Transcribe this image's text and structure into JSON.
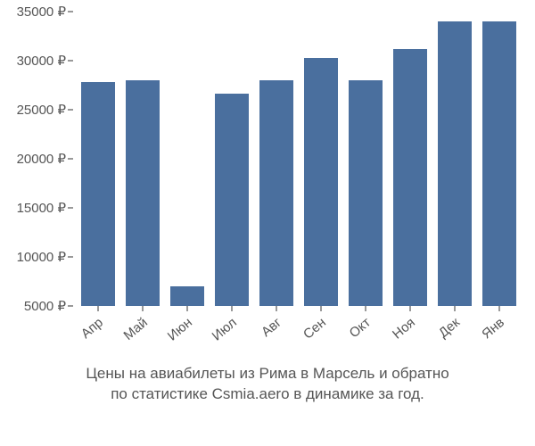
{
  "chart": {
    "type": "bar",
    "categories": [
      "Апр",
      "Май",
      "Июн",
      "Июл",
      "Авг",
      "Сен",
      "Окт",
      "Ноя",
      "Дек",
      "Янв"
    ],
    "values": [
      27800,
      28000,
      7000,
      26600,
      28000,
      30300,
      28000,
      31200,
      34000,
      34000
    ],
    "bar_color": "#4a6f9e",
    "bar_width_ratio": 0.75,
    "ylim": [
      5000,
      35000
    ],
    "ytick_step": 5000,
    "ytick_suffix": " ₽",
    "background_color": "#ffffff",
    "axis_label_color": "#555555",
    "axis_label_fontsize": 15,
    "tick_color": "#333333",
    "x_label_rotation": -40
  },
  "caption": {
    "line1": "Цены на авиабилеты из Рима в Марсель и обратно",
    "line2": "по статистике Csmia.aero в динамике за год.",
    "fontsize": 17,
    "color": "#555555"
  }
}
